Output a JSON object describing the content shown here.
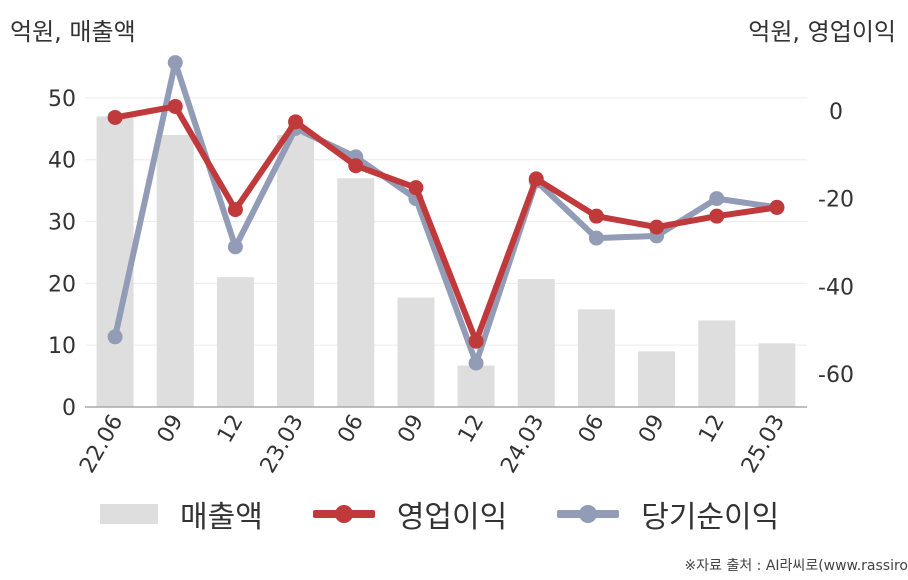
{
  "units": {
    "left": "억원, 매출액",
    "right": "억원, 영업이익"
  },
  "source": "※자료 출처 : AI라씨로(www.rassiro",
  "colors": {
    "revenue": "#dedede",
    "operating_profit": "#c0393b",
    "net_income": "#929cb6"
  },
  "chart_data": {
    "type": "bar+line",
    "categories": [
      "22.06",
      "09",
      "12",
      "23.03",
      "06",
      "09",
      "12",
      "24.03",
      "06",
      "09",
      "12",
      "25.03"
    ],
    "y_left": {
      "ticks": [
        0,
        10,
        20,
        30,
        40,
        50
      ],
      "range": [
        0,
        55
      ]
    },
    "y_right": {
      "ticks": [
        0,
        -20,
        -40,
        -60
      ],
      "range": [
        -67.5,
        10
      ]
    },
    "series": [
      {
        "name": "매출액",
        "type": "bar",
        "axis": "left",
        "values": [
          47,
          44,
          21,
          44,
          37,
          17.7,
          6.7,
          20.7,
          15.8,
          9,
          14,
          10.3
        ]
      },
      {
        "name": "영업이익",
        "type": "line",
        "axis": "right",
        "values": [
          -1.5,
          1,
          -22.5,
          -2.5,
          -12.5,
          -17.5,
          -52.5,
          -15.5,
          -24,
          -26.5,
          -24,
          -22
        ]
      },
      {
        "name": "당기순이익",
        "type": "line",
        "axis": "right",
        "values": [
          -51.5,
          11,
          -31,
          -4,
          -10.5,
          -20,
          -57.5,
          -16,
          -29,
          -28.5,
          -20,
          -22
        ]
      }
    ],
    "grid": true,
    "legend": "bottom"
  }
}
